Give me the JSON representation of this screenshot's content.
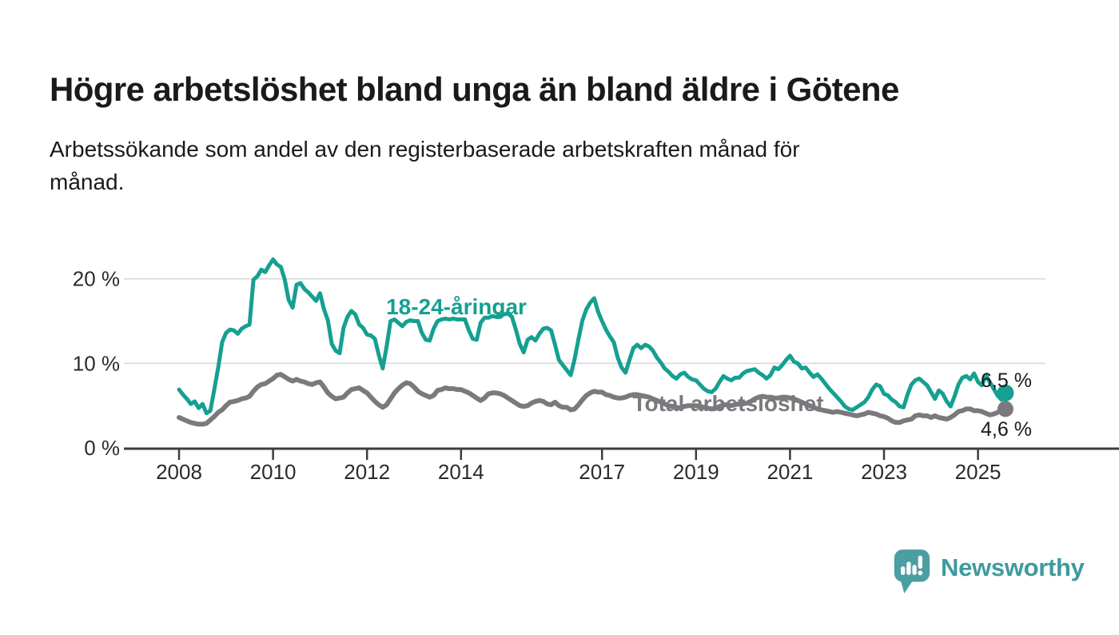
{
  "header": {
    "title": "Högre arbetslöshet bland unga än bland äldre i Götene",
    "subtitle_lines": [
      "Arbetssökande som andel av den registerbaserade arbetskraften månad för",
      "månad."
    ]
  },
  "chart_data": {
    "type": "line",
    "frequency": "monthly",
    "x_start": "2008-01",
    "x_end": "2025-08",
    "grid": "horizontal",
    "grid_color": "#d9d9d9",
    "axis_color": "#3c3c3c",
    "ylim": [
      0,
      23
    ],
    "yticks": [
      {
        "value": 0,
        "label": "0 %"
      },
      {
        "value": 10,
        "label": "10 %"
      },
      {
        "value": 20,
        "label": "20 %"
      }
    ],
    "xticks": [
      {
        "year": 2008,
        "label": "2008"
      },
      {
        "year": 2010,
        "label": "2010"
      },
      {
        "year": 2012,
        "label": "2012"
      },
      {
        "year": 2014,
        "label": "2014"
      },
      {
        "year": 2017,
        "label": "2017"
      },
      {
        "year": 2019,
        "label": "2019"
      },
      {
        "year": 2021,
        "label": "2021"
      },
      {
        "year": 2023,
        "label": "2023"
      },
      {
        "year": 2025,
        "label": "2025"
      }
    ],
    "series": [
      {
        "name": "18-24-åringar",
        "color": "#15a091",
        "end_label": "6,5 %",
        "end_value": 6.5,
        "values": [
          6.9,
          6.3,
          5.8,
          5.2,
          5.5,
          4.7,
          5.2,
          4.1,
          4.4,
          6.9,
          9.5,
          12.5,
          13.6,
          14.0,
          13.9,
          13.5,
          14.1,
          14.4,
          14.6,
          19.9,
          20.3,
          21.1,
          20.8,
          21.6,
          22.3,
          21.7,
          21.4,
          19.9,
          17.5,
          16.6,
          19.3,
          19.5,
          18.8,
          18.4,
          17.9,
          17.4,
          18.3,
          16.4,
          15.1,
          12.3,
          11.5,
          11.2,
          14.2,
          15.5,
          16.2,
          15.8,
          14.6,
          14.2,
          13.4,
          13.3,
          12.9,
          11.0,
          9.4,
          12.0,
          15.0,
          15.2,
          14.8,
          14.4,
          14.9,
          15.1,
          15.0,
          15.0,
          13.6,
          12.8,
          12.7,
          14.1,
          15.0,
          15.2,
          15.3,
          15.2,
          15.3,
          15.2,
          15.2,
          15.2,
          13.9,
          12.9,
          12.8,
          14.8,
          15.4,
          15.4,
          15.6,
          15.5,
          15.7,
          15.8,
          15.9,
          15.5,
          14.0,
          12.3,
          11.3,
          12.8,
          13.1,
          12.7,
          13.5,
          14.1,
          14.2,
          13.9,
          12.2,
          10.4,
          9.8,
          9.2,
          8.6,
          10.5,
          12.9,
          15.1,
          16.4,
          17.2,
          17.7,
          16.1,
          15.0,
          14.0,
          13.2,
          12.5,
          10.7,
          9.5,
          8.9,
          10.4,
          11.8,
          12.2,
          11.8,
          12.2,
          12.0,
          11.5,
          10.7,
          10.1,
          9.4,
          9.0,
          8.5,
          8.2,
          8.7,
          8.9,
          8.4,
          8.1,
          8.0,
          7.5,
          7.0,
          6.7,
          6.6,
          7.0,
          7.8,
          8.5,
          8.2,
          8.0,
          8.3,
          8.3,
          8.8,
          9.1,
          9.2,
          9.3,
          8.9,
          8.6,
          8.2,
          8.6,
          9.5,
          9.3,
          9.8,
          10.4,
          10.9,
          10.2,
          10.0,
          9.4,
          9.5,
          8.9,
          8.4,
          8.7,
          8.2,
          7.6,
          7.0,
          6.5,
          6.0,
          5.5,
          4.9,
          4.6,
          4.5,
          4.8,
          5.1,
          5.4,
          6.0,
          6.9,
          7.5,
          7.3,
          6.4,
          6.2,
          5.7,
          5.4,
          4.9,
          4.8,
          6.3,
          7.5,
          8.0,
          8.2,
          7.8,
          7.4,
          6.6,
          5.8,
          6.8,
          6.4,
          5.5,
          4.9,
          6.1,
          7.5,
          8.3,
          8.5,
          8.1,
          8.8,
          7.8,
          7.4,
          8.6,
          7.8,
          7.0,
          6.2,
          5.7,
          6.5
        ]
      },
      {
        "name": "Total arbetslöshet",
        "color": "#7b797d",
        "end_label": "4,6 %",
        "end_value": 4.6,
        "values": [
          3.6,
          3.4,
          3.2,
          3.0,
          2.9,
          2.8,
          2.8,
          2.9,
          3.3,
          3.7,
          4.2,
          4.5,
          5.0,
          5.4,
          5.5,
          5.6,
          5.8,
          5.9,
          6.1,
          6.7,
          7.2,
          7.5,
          7.6,
          7.9,
          8.2,
          8.6,
          8.7,
          8.4,
          8.1,
          7.9,
          8.1,
          7.9,
          7.8,
          7.6,
          7.5,
          7.7,
          7.8,
          7.2,
          6.5,
          6.1,
          5.8,
          5.9,
          6.0,
          6.5,
          6.9,
          7.0,
          7.1,
          6.8,
          6.5,
          6.0,
          5.5,
          5.1,
          4.8,
          5.1,
          5.8,
          6.5,
          7.0,
          7.4,
          7.7,
          7.6,
          7.2,
          6.7,
          6.4,
          6.2,
          6.0,
          6.2,
          6.8,
          6.9,
          7.1,
          7.0,
          7.0,
          6.9,
          6.9,
          6.7,
          6.5,
          6.2,
          5.9,
          5.6,
          5.9,
          6.4,
          6.5,
          6.5,
          6.4,
          6.2,
          5.9,
          5.6,
          5.3,
          5.0,
          4.9,
          5.0,
          5.3,
          5.5,
          5.6,
          5.5,
          5.2,
          5.1,
          5.4,
          5.0,
          4.8,
          4.8,
          4.5,
          4.6,
          5.1,
          5.7,
          6.2,
          6.5,
          6.7,
          6.6,
          6.6,
          6.3,
          6.2,
          6.0,
          5.9,
          5.9,
          6.0,
          6.2,
          6.3,
          6.3,
          6.2,
          6.1,
          6.0,
          5.8,
          5.6,
          5.4,
          5.2,
          5.0,
          4.9,
          4.8,
          4.7,
          4.9,
          5.0,
          5.0,
          5.0,
          4.9,
          4.8,
          4.7,
          4.6,
          4.7,
          4.9,
          5.1,
          5.1,
          5.0,
          5.1,
          5.2,
          5.2,
          5.3,
          5.5,
          5.8,
          6.0,
          6.1,
          6.0,
          6.0,
          5.9,
          5.9,
          6.0,
          6.0,
          5.9,
          5.8,
          5.6,
          5.4,
          5.2,
          5.0,
          4.8,
          4.6,
          4.5,
          4.4,
          4.3,
          4.2,
          4.3,
          4.2,
          4.1,
          4.0,
          3.9,
          3.8,
          3.9,
          4.0,
          4.2,
          4.1,
          4.0,
          3.8,
          3.7,
          3.5,
          3.2,
          3.0,
          3.0,
          3.2,
          3.3,
          3.4,
          3.8,
          3.9,
          3.8,
          3.8,
          3.6,
          3.8,
          3.6,
          3.5,
          3.4,
          3.6,
          3.9,
          4.3,
          4.4,
          4.6,
          4.6,
          4.4,
          4.4,
          4.3,
          4.1,
          3.9,
          4.0,
          4.2,
          4.4,
          4.6
        ]
      }
    ]
  },
  "footer": {
    "brand": "Newsworthy",
    "brand_color": "#3e9a9d",
    "logo_color": "#4b9ea2"
  }
}
